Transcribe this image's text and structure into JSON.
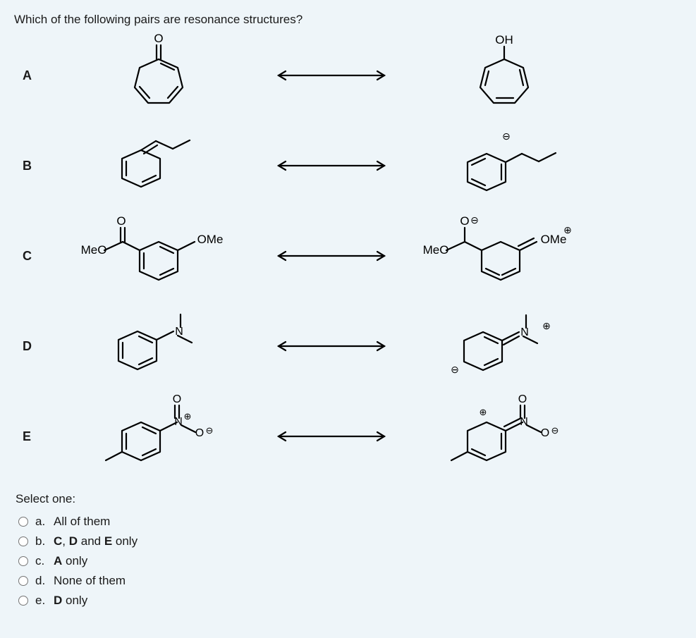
{
  "question": "Which of the following pairs are resonance structures?",
  "rows": [
    {
      "label": "A"
    },
    {
      "label": "B"
    },
    {
      "label": "C"
    },
    {
      "label": "D"
    },
    {
      "label": "E"
    }
  ],
  "chem_labels": {
    "OH": "OH",
    "O": "O",
    "OMe": "OMe",
    "MeO": "MeO",
    "N": "N"
  },
  "charges": {
    "plus": "⊕",
    "minus": "⊖"
  },
  "select_one": "Select one:",
  "options": [
    {
      "letter": "a.",
      "html": "All of them"
    },
    {
      "letter": "b.",
      "html": "<b>C</b>, <b>D</b> and <b>E</b> only"
    },
    {
      "letter": "c.",
      "html": "<b>A</b> only"
    },
    {
      "letter": "d.",
      "html": "None of them"
    },
    {
      "letter": "e.",
      "html": "<b>D</b> only"
    }
  ],
  "style": {
    "background": "#eef5f9",
    "stroke": "#000000",
    "stroke_width": 2.2,
    "text_color": "#1a1a1a",
    "font_family": "Segoe UI, Arial, sans-serif",
    "question_fontsize": 17,
    "label_fontsize": 18,
    "chem_label_fontsize": 17,
    "charge_fontsize": 14,
    "arrow_length": 160,
    "arrow_head": 10
  }
}
